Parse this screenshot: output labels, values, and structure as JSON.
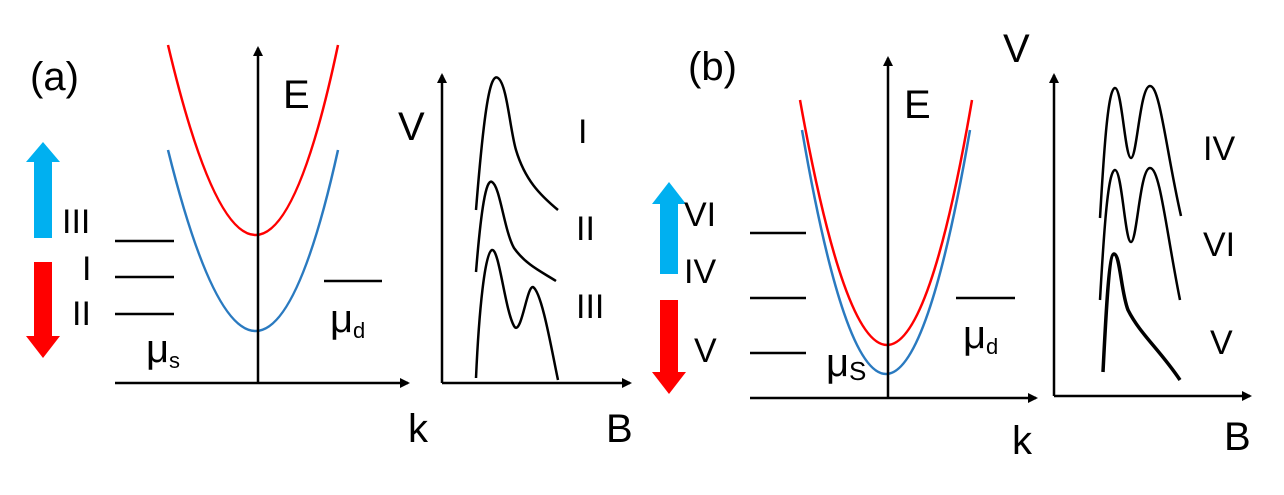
{
  "panel_a": {
    "label": "(a)",
    "energy_axis": "E",
    "momentum_axis": "k",
    "mu_s": "μ",
    "mu_s_sub": "s",
    "mu_d": "μ",
    "mu_d_sub": "d",
    "level_labels": [
      "III",
      "I",
      "II"
    ],
    "voltage_axis": "V",
    "field_axis": "B",
    "trace_labels": [
      "I",
      "II",
      "III"
    ]
  },
  "panel_b": {
    "label": "(b)",
    "energy_axis": "E",
    "momentum_axis": "k",
    "mu_s": "μ",
    "mu_s_sub": "S",
    "mu_d": "μ",
    "mu_d_sub": "d",
    "level_labels": [
      "VI",
      "IV",
      "V"
    ],
    "voltage_axis": "V",
    "field_axis": "B",
    "trace_labels": [
      "IV",
      "VI",
      "V"
    ]
  },
  "colors": {
    "upper_band": "#ff0000",
    "lower_band": "#2a7ac0",
    "arrow_up": "#00b0f0",
    "arrow_down": "#ff0000",
    "axes": "#000000"
  }
}
